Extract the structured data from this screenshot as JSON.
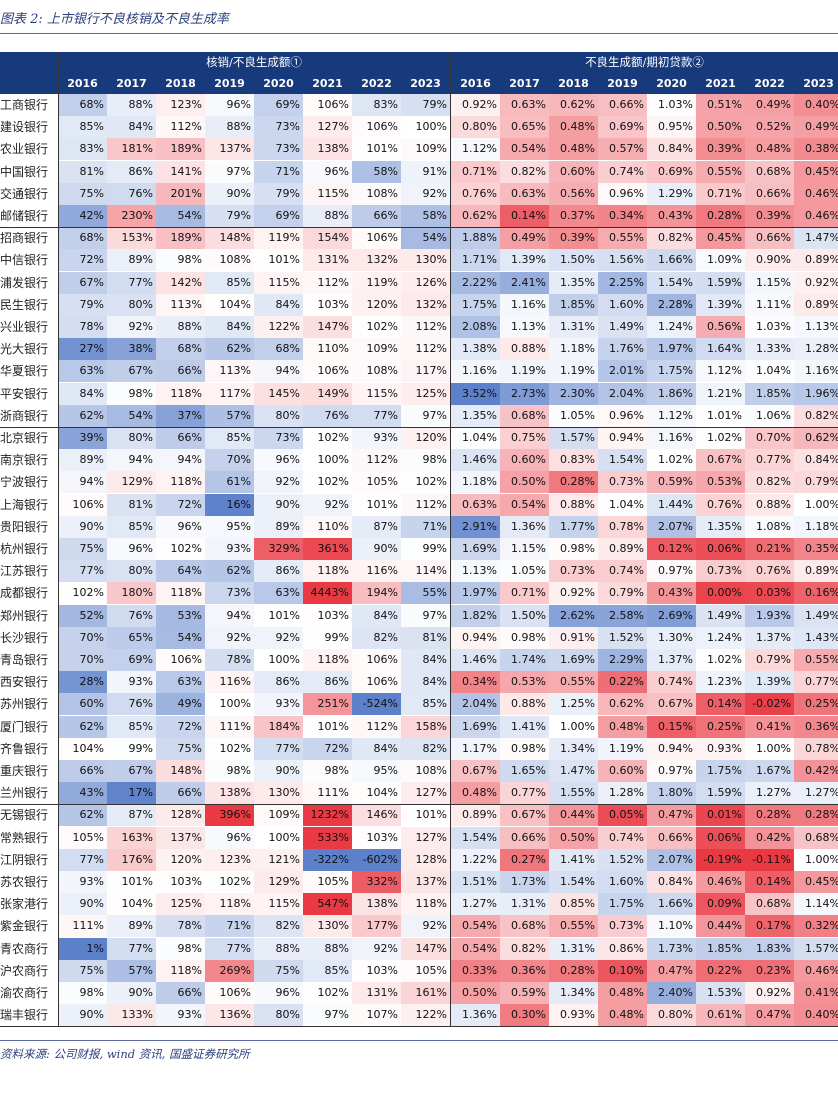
{
  "title": "图表 2: 上市银行不良核销及不良生成率",
  "header": {
    "group1": "核销/不良生成额①",
    "group2": "不良生成额/期初贷款②",
    "years1": [
      "2016",
      "2017",
      "2018",
      "2019",
      "2020",
      "2021",
      "2022",
      "2023"
    ],
    "years2": [
      "2016",
      "2017",
      "2018",
      "2019",
      "2020",
      "2021",
      "2022",
      "2023"
    ]
  },
  "rows": [
    {
      "name": "工商银行",
      "a": [
        "68%",
        "88%",
        "123%",
        "96%",
        "69%",
        "106%",
        "83%",
        "79%"
      ],
      "b": [
        "0.92%",
        "0.63%",
        "0.62%",
        "0.66%",
        "1.03%",
        "0.51%",
        "0.49%",
        "0.40%"
      ]
    },
    {
      "name": "建设银行",
      "a": [
        "85%",
        "84%",
        "112%",
        "88%",
        "73%",
        "127%",
        "106%",
        "100%"
      ],
      "b": [
        "0.80%",
        "0.65%",
        "0.48%",
        "0.69%",
        "0.95%",
        "0.50%",
        "0.52%",
        "0.49%"
      ]
    },
    {
      "name": "农业银行",
      "a": [
        "83%",
        "181%",
        "189%",
        "137%",
        "73%",
        "138%",
        "101%",
        "109%"
      ],
      "b": [
        "1.12%",
        "0.54%",
        "0.48%",
        "0.57%",
        "0.84%",
        "0.39%",
        "0.48%",
        "0.38%"
      ]
    },
    {
      "name": "中国银行",
      "a": [
        "81%",
        "86%",
        "141%",
        "97%",
        "71%",
        "96%",
        "58%",
        "91%"
      ],
      "b": [
        "0.71%",
        "0.82%",
        "0.60%",
        "0.74%",
        "0.69%",
        "0.55%",
        "0.68%",
        "0.45%"
      ]
    },
    {
      "name": "交通银行",
      "a": [
        "75%",
        "76%",
        "201%",
        "90%",
        "79%",
        "115%",
        "108%",
        "92%"
      ],
      "b": [
        "0.76%",
        "0.63%",
        "0.56%",
        "0.96%",
        "1.29%",
        "0.71%",
        "0.66%",
        "0.46%"
      ]
    },
    {
      "name": "邮储银行",
      "a": [
        "42%",
        "230%",
        "54%",
        "79%",
        "69%",
        "88%",
        "66%",
        "58%"
      ],
      "b": [
        "0.62%",
        "0.14%",
        "0.37%",
        "0.34%",
        "0.43%",
        "0.28%",
        "0.39%",
        "0.46%"
      ]
    },
    {
      "name": "招商银行",
      "a": [
        "68%",
        "153%",
        "189%",
        "148%",
        "119%",
        "154%",
        "106%",
        "54%"
      ],
      "b": [
        "1.88%",
        "0.49%",
        "0.39%",
        "0.55%",
        "0.82%",
        "0.45%",
        "0.66%",
        "1.47%"
      ]
    },
    {
      "name": "中信银行",
      "a": [
        "72%",
        "89%",
        "98%",
        "108%",
        "101%",
        "131%",
        "132%",
        "130%"
      ],
      "b": [
        "1.71%",
        "1.39%",
        "1.50%",
        "1.56%",
        "1.66%",
        "1.09%",
        "0.90%",
        "0.89%"
      ]
    },
    {
      "name": "浦发银行",
      "a": [
        "67%",
        "77%",
        "142%",
        "85%",
        "115%",
        "112%",
        "119%",
        "126%"
      ],
      "b": [
        "2.22%",
        "2.41%",
        "1.35%",
        "2.25%",
        "1.54%",
        "1.59%",
        "1.15%",
        "0.92%"
      ]
    },
    {
      "name": "民生银行",
      "a": [
        "79%",
        "80%",
        "113%",
        "104%",
        "84%",
        "103%",
        "120%",
        "132%"
      ],
      "b": [
        "1.75%",
        "1.16%",
        "1.85%",
        "1.60%",
        "2.28%",
        "1.39%",
        "1.11%",
        "0.89%"
      ]
    },
    {
      "name": "兴业银行",
      "a": [
        "78%",
        "92%",
        "88%",
        "84%",
        "122%",
        "147%",
        "102%",
        "112%"
      ],
      "b": [
        "2.08%",
        "1.13%",
        "1.31%",
        "1.49%",
        "1.24%",
        "0.56%",
        "1.03%",
        "1.13%"
      ]
    },
    {
      "name": "光大银行",
      "a": [
        "27%",
        "38%",
        "68%",
        "62%",
        "68%",
        "110%",
        "109%",
        "112%"
      ],
      "b": [
        "1.38%",
        "0.88%",
        "1.18%",
        "1.76%",
        "1.97%",
        "1.64%",
        "1.33%",
        "1.28%"
      ]
    },
    {
      "name": "华夏银行",
      "a": [
        "63%",
        "67%",
        "66%",
        "113%",
        "94%",
        "106%",
        "108%",
        "117%"
      ],
      "b": [
        "1.16%",
        "1.19%",
        "1.19%",
        "2.01%",
        "1.75%",
        "1.12%",
        "1.04%",
        "1.16%"
      ]
    },
    {
      "name": "平安银行",
      "a": [
        "84%",
        "98%",
        "118%",
        "117%",
        "145%",
        "149%",
        "115%",
        "125%"
      ],
      "b": [
        "3.52%",
        "2.73%",
        "2.30%",
        "2.04%",
        "1.86%",
        "1.21%",
        "1.85%",
        "1.96%"
      ]
    },
    {
      "name": "浙商银行",
      "a": [
        "62%",
        "54%",
        "37%",
        "57%",
        "80%",
        "76%",
        "77%",
        "97%"
      ],
      "b": [
        "1.35%",
        "0.68%",
        "1.05%",
        "0.96%",
        "1.12%",
        "1.01%",
        "1.06%",
        "0.82%"
      ]
    },
    {
      "name": "北京银行",
      "a": [
        "39%",
        "80%",
        "66%",
        "85%",
        "73%",
        "102%",
        "93%",
        "120%"
      ],
      "b": [
        "1.04%",
        "0.75%",
        "1.57%",
        "0.94%",
        "1.16%",
        "1.02%",
        "0.70%",
        "0.62%"
      ]
    },
    {
      "name": "南京银行",
      "a": [
        "89%",
        "94%",
        "94%",
        "70%",
        "96%",
        "100%",
        "112%",
        "98%"
      ],
      "b": [
        "1.46%",
        "0.60%",
        "0.83%",
        "1.54%",
        "1.02%",
        "0.67%",
        "0.77%",
        "0.84%"
      ]
    },
    {
      "name": "宁波银行",
      "a": [
        "94%",
        "129%",
        "118%",
        "61%",
        "92%",
        "102%",
        "105%",
        "102%"
      ],
      "b": [
        "1.18%",
        "0.50%",
        "0.28%",
        "0.73%",
        "0.59%",
        "0.53%",
        "0.82%",
        "0.79%"
      ]
    },
    {
      "name": "上海银行",
      "a": [
        "106%",
        "81%",
        "72%",
        "16%",
        "90%",
        "92%",
        "101%",
        "112%"
      ],
      "b": [
        "0.63%",
        "0.54%",
        "0.88%",
        "1.04%",
        "1.44%",
        "0.76%",
        "0.88%",
        "1.00%"
      ]
    },
    {
      "name": "贵阳银行",
      "a": [
        "90%",
        "85%",
        "96%",
        "95%",
        "89%",
        "110%",
        "87%",
        "71%"
      ],
      "b": [
        "2.91%",
        "1.36%",
        "1.77%",
        "0.78%",
        "2.07%",
        "1.35%",
        "1.08%",
        "1.18%"
      ]
    },
    {
      "name": "杭州银行",
      "a": [
        "75%",
        "96%",
        "102%",
        "93%",
        "329%",
        "361%",
        "90%",
        "99%"
      ],
      "b": [
        "1.69%",
        "1.15%",
        "0.98%",
        "0.89%",
        "0.12%",
        "0.06%",
        "0.21%",
        "0.35%"
      ]
    },
    {
      "name": "江苏银行",
      "a": [
        "77%",
        "80%",
        "64%",
        "62%",
        "86%",
        "118%",
        "116%",
        "114%"
      ],
      "b": [
        "1.13%",
        "1.05%",
        "0.73%",
        "0.74%",
        "0.97%",
        "0.73%",
        "0.76%",
        "0.89%"
      ]
    },
    {
      "name": "成都银行",
      "a": [
        "102%",
        "180%",
        "118%",
        "73%",
        "63%",
        "4443%",
        "194%",
        "55%"
      ],
      "b": [
        "1.97%",
        "0.71%",
        "0.92%",
        "0.79%",
        "0.43%",
        "0.00%",
        "0.03%",
        "0.16%"
      ]
    },
    {
      "name": "郑州银行",
      "a": [
        "52%",
        "76%",
        "53%",
        "94%",
        "101%",
        "103%",
        "84%",
        "97%"
      ],
      "b": [
        "1.82%",
        "1.50%",
        "2.62%",
        "2.58%",
        "2.69%",
        "1.49%",
        "1.93%",
        "1.49%"
      ]
    },
    {
      "name": "长沙银行",
      "a": [
        "70%",
        "65%",
        "54%",
        "92%",
        "92%",
        "99%",
        "82%",
        "81%"
      ],
      "b": [
        "0.94%",
        "0.98%",
        "0.91%",
        "1.52%",
        "1.30%",
        "1.24%",
        "1.37%",
        "1.43%"
      ]
    },
    {
      "name": "青岛银行",
      "a": [
        "70%",
        "69%",
        "106%",
        "78%",
        "100%",
        "118%",
        "106%",
        "84%"
      ],
      "b": [
        "1.46%",
        "1.74%",
        "1.69%",
        "2.29%",
        "1.37%",
        "1.02%",
        "0.79%",
        "0.55%"
      ]
    },
    {
      "name": "西安银行",
      "a": [
        "28%",
        "93%",
        "63%",
        "116%",
        "86%",
        "86%",
        "106%",
        "84%"
      ],
      "b": [
        "0.34%",
        "0.53%",
        "0.55%",
        "0.22%",
        "0.74%",
        "1.23%",
        "1.39%",
        "0.77%"
      ]
    },
    {
      "name": "苏州银行",
      "a": [
        "60%",
        "76%",
        "49%",
        "100%",
        "93%",
        "251%",
        "-524%",
        "85%"
      ],
      "b": [
        "2.04%",
        "0.88%",
        "1.25%",
        "0.62%",
        "0.67%",
        "0.14%",
        "-0.02%",
        "0.25%"
      ]
    },
    {
      "name": "厦门银行",
      "a": [
        "62%",
        "85%",
        "72%",
        "111%",
        "184%",
        "101%",
        "112%",
        "158%"
      ],
      "b": [
        "1.69%",
        "1.41%",
        "1.00%",
        "0.48%",
        "0.15%",
        "0.25%",
        "0.41%",
        "0.36%"
      ]
    },
    {
      "name": "齐鲁银行",
      "a": [
        "104%",
        "99%",
        "75%",
        "102%",
        "77%",
        "72%",
        "84%",
        "82%"
      ],
      "b": [
        "1.17%",
        "0.98%",
        "1.34%",
        "1.19%",
        "0.94%",
        "0.93%",
        "1.00%",
        "0.78%"
      ]
    },
    {
      "name": "重庆银行",
      "a": [
        "66%",
        "67%",
        "148%",
        "98%",
        "90%",
        "98%",
        "95%",
        "108%"
      ],
      "b": [
        "0.67%",
        "1.65%",
        "1.47%",
        "0.60%",
        "0.97%",
        "1.75%",
        "1.67%",
        "0.42%"
      ]
    },
    {
      "name": "兰州银行",
      "a": [
        "43%",
        "17%",
        "66%",
        "138%",
        "130%",
        "111%",
        "104%",
        "127%"
      ],
      "b": [
        "0.48%",
        "0.77%",
        "1.55%",
        "1.28%",
        "1.80%",
        "1.59%",
        "1.27%",
        "1.27%"
      ]
    },
    {
      "name": "无锡银行",
      "a": [
        "62%",
        "87%",
        "128%",
        "396%",
        "109%",
        "1232%",
        "146%",
        "101%"
      ],
      "b": [
        "0.89%",
        "0.67%",
        "0.44%",
        "0.05%",
        "0.47%",
        "0.01%",
        "0.28%",
        "0.28%"
      ]
    },
    {
      "name": "常熟银行",
      "a": [
        "105%",
        "163%",
        "137%",
        "96%",
        "100%",
        "533%",
        "103%",
        "127%"
      ],
      "b": [
        "1.54%",
        "0.66%",
        "0.50%",
        "0.74%",
        "0.66%",
        "0.06%",
        "0.42%",
        "0.68%"
      ]
    },
    {
      "name": "江阴银行",
      "a": [
        "77%",
        "176%",
        "120%",
        "123%",
        "121%",
        "-322%",
        "-602%",
        "128%"
      ],
      "b": [
        "1.22%",
        "0.27%",
        "1.41%",
        "1.52%",
        "2.07%",
        "-0.19%",
        "-0.11%",
        "1.00%"
      ]
    },
    {
      "name": "苏农银行",
      "a": [
        "93%",
        "101%",
        "103%",
        "102%",
        "129%",
        "105%",
        "332%",
        "137%"
      ],
      "b": [
        "1.51%",
        "1.73%",
        "1.54%",
        "1.60%",
        "0.84%",
        "0.46%",
        "0.14%",
        "0.45%"
      ]
    },
    {
      "name": "张家港行",
      "a": [
        "90%",
        "104%",
        "125%",
        "118%",
        "115%",
        "547%",
        "138%",
        "118%"
      ],
      "b": [
        "1.27%",
        "1.31%",
        "0.85%",
        "1.75%",
        "1.66%",
        "0.09%",
        "0.68%",
        "1.14%"
      ]
    },
    {
      "name": "紫金银行",
      "a": [
        "111%",
        "89%",
        "78%",
        "71%",
        "82%",
        "130%",
        "177%",
        "92%"
      ],
      "b": [
        "0.54%",
        "0.68%",
        "0.55%",
        "0.73%",
        "1.10%",
        "0.44%",
        "0.17%",
        "0.32%"
      ]
    },
    {
      "name": "青农商行",
      "a": [
        "1%",
        "77%",
        "98%",
        "77%",
        "88%",
        "88%",
        "92%",
        "147%"
      ],
      "b": [
        "0.54%",
        "0.82%",
        "1.31%",
        "0.86%",
        "1.73%",
        "1.85%",
        "1.83%",
        "1.57%"
      ]
    },
    {
      "name": "沪农商行",
      "a": [
        "75%",
        "57%",
        "118%",
        "269%",
        "75%",
        "85%",
        "103%",
        "105%"
      ],
      "b": [
        "0.33%",
        "0.36%",
        "0.28%",
        "0.10%",
        "0.47%",
        "0.22%",
        "0.23%",
        "0.46%"
      ]
    },
    {
      "name": "渝农商行",
      "a": [
        "98%",
        "90%",
        "66%",
        "106%",
        "96%",
        "102%",
        "131%",
        "161%"
      ],
      "b": [
        "0.50%",
        "0.59%",
        "1.34%",
        "0.48%",
        "2.40%",
        "1.53%",
        "0.92%",
        "0.41%"
      ]
    },
    {
      "name": "瑞丰银行",
      "a": [
        "90%",
        "133%",
        "93%",
        "136%",
        "80%",
        "97%",
        "107%",
        "122%"
      ],
      "b": [
        "1.36%",
        "0.30%",
        "0.93%",
        "0.48%",
        "0.80%",
        "0.61%",
        "0.47%",
        "0.40%"
      ]
    }
  ],
  "source": "资料来源: 公司财报, wind 资讯, 国盛证券研究所",
  "colors": {
    "header_bg": "#173a7c",
    "high": "#e8303a",
    "low": "#4a72c4",
    "mid": "#ffffff"
  }
}
